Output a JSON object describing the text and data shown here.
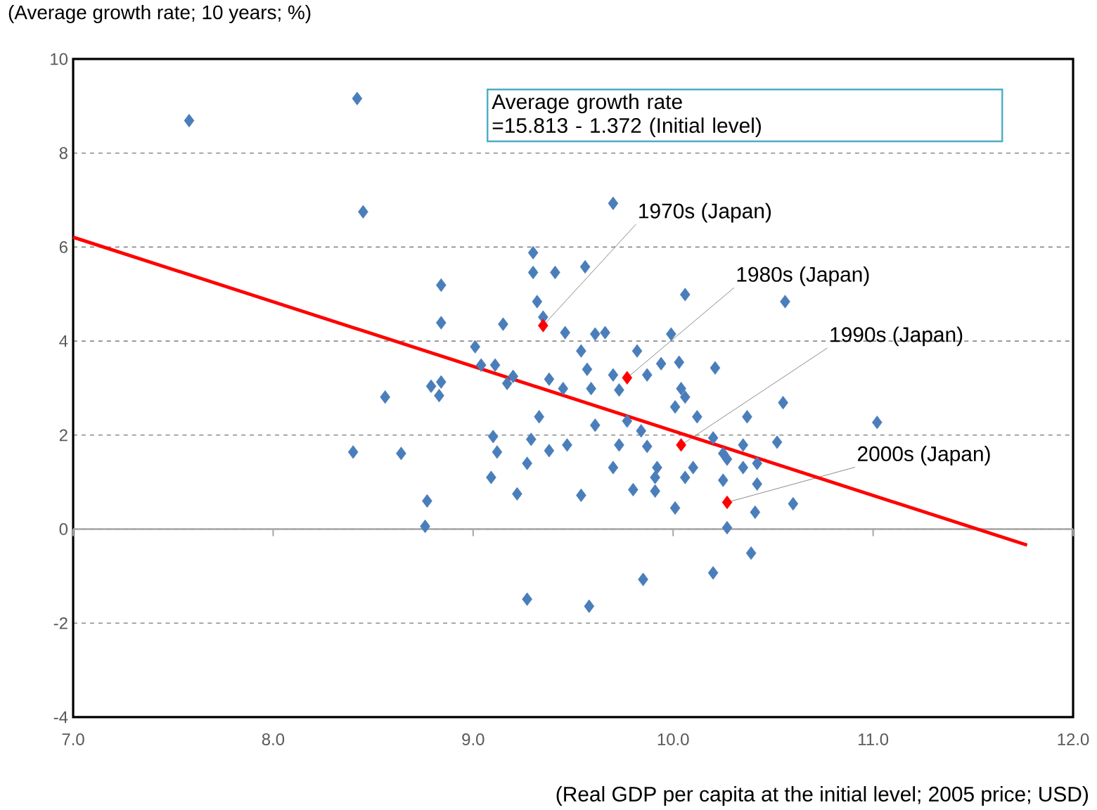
{
  "chart_data": {
    "type": "scatter",
    "xlabel": "(Real GDP per capita at the initial level; 2005 price; USD)",
    "ylabel": "(Average growth rate; 10 years; %)",
    "xlim": [
      7,
      12
    ],
    "ylim": [
      -4,
      10
    ],
    "xticks": [
      {
        "value": 7,
        "label": "7.0"
      },
      {
        "value": 8,
        "label": "8.0"
      },
      {
        "value": 9,
        "label": "9.0"
      },
      {
        "value": 10,
        "label": "10.0"
      },
      {
        "value": 11,
        "label": "11.0"
      },
      {
        "value": 12,
        "label": "12.0"
      }
    ],
    "yticks": [
      -4,
      -2,
      0,
      2,
      4,
      6,
      8,
      10
    ],
    "grid": "y",
    "marker": "diamond",
    "ref_lines": [
      {
        "axis": "y",
        "value": 0,
        "color": "#a6a6a6"
      }
    ],
    "series": [
      {
        "color": "#4a7ebb",
        "x": [
          7.58,
          8.42,
          8.45,
          9.3,
          9.3,
          9.41,
          8.84,
          9.32,
          8.84,
          9.15,
          9.35,
          9.01,
          9.04,
          9.11,
          9.17,
          9.2,
          8.79,
          8.84,
          8.83,
          8.56,
          8.4,
          8.64,
          8.77,
          8.76,
          9.1,
          9.12,
          9.09,
          9.22,
          9.27,
          9.29,
          9.33,
          9.38,
          9.27,
          9.58,
          9.85,
          10.2,
          10.39,
          10.27,
          10.41,
          10.6,
          10.01,
          9.54,
          9.8,
          9.91,
          9.7,
          9.47,
          10.52,
          11.02,
          10.55,
          10.37,
          9.61,
          9.77,
          9.87,
          9.73,
          10.1,
          10.06,
          10.25,
          10.27,
          10.35,
          10.42,
          10.42,
          9.92,
          9.91,
          9.84,
          10.01,
          10.06,
          10.12,
          10.2,
          10.35,
          10.25,
          9.7,
          9.56,
          10.06,
          10.56,
          9.46,
          9.61,
          9.66,
          9.99,
          9.82,
          9.94,
          10.03,
          10.21,
          9.54,
          9.57,
          9.7,
          9.87,
          9.38,
          9.45,
          9.59,
          9.73,
          10.04
        ],
        "values": [
          8.69,
          9.16,
          6.75,
          5.88,
          5.46,
          5.46,
          5.19,
          4.84,
          4.39,
          4.36,
          4.51,
          3.88,
          3.49,
          3.49,
          3.1,
          3.25,
          3.04,
          3.13,
          2.84,
          2.81,
          1.64,
          1.61,
          0.6,
          0.06,
          1.97,
          1.64,
          1.1,
          0.75,
          1.4,
          1.91,
          2.39,
          1.67,
          -1.49,
          -1.64,
          -1.07,
          -0.93,
          -0.51,
          0.03,
          0.36,
          0.54,
          0.45,
          0.72,
          0.84,
          0.81,
          1.31,
          1.79,
          1.85,
          2.27,
          2.69,
          2.39,
          2.21,
          2.3,
          1.76,
          1.79,
          1.31,
          1.1,
          1.04,
          1.49,
          1.31,
          1.4,
          0.96,
          1.31,
          1.1,
          2.09,
          2.6,
          2.81,
          2.39,
          1.94,
          1.79,
          1.61,
          6.93,
          5.58,
          4.99,
          4.84,
          4.18,
          4.15,
          4.18,
          4.15,
          3.79,
          3.52,
          3.55,
          3.43,
          3.79,
          3.4,
          3.28,
          3.28,
          3.19,
          2.99,
          2.99,
          2.96,
          2.99
        ]
      },
      {
        "color": "#ff0000",
        "x": [
          9.35,
          9.77,
          10.04,
          10.27
        ],
        "values": [
          4.33,
          3.22,
          1.79,
          0.57
        ]
      },
      {
        "type": "line",
        "marker": "none",
        "color": "#ff0000",
        "x": [
          7,
          11.77
        ],
        "values": [
          6.21,
          -0.34
        ]
      }
    ],
    "annotations": [
      "Average growth rate\n =15.813 - 1.372 (Initial level)",
      {
        "text": "1970s (Japan)",
        "x": 9.35,
        "y": 4.33
      },
      {
        "text": "1980s (Japan)",
        "x": 9.77,
        "y": 3.22
      },
      {
        "text": "1990s (Japan)",
        "x": 10.04,
        "y": 1.79
      },
      {
        "text": "2000s (Japan)",
        "x": 10.27,
        "y": 0.57
      }
    ]
  }
}
